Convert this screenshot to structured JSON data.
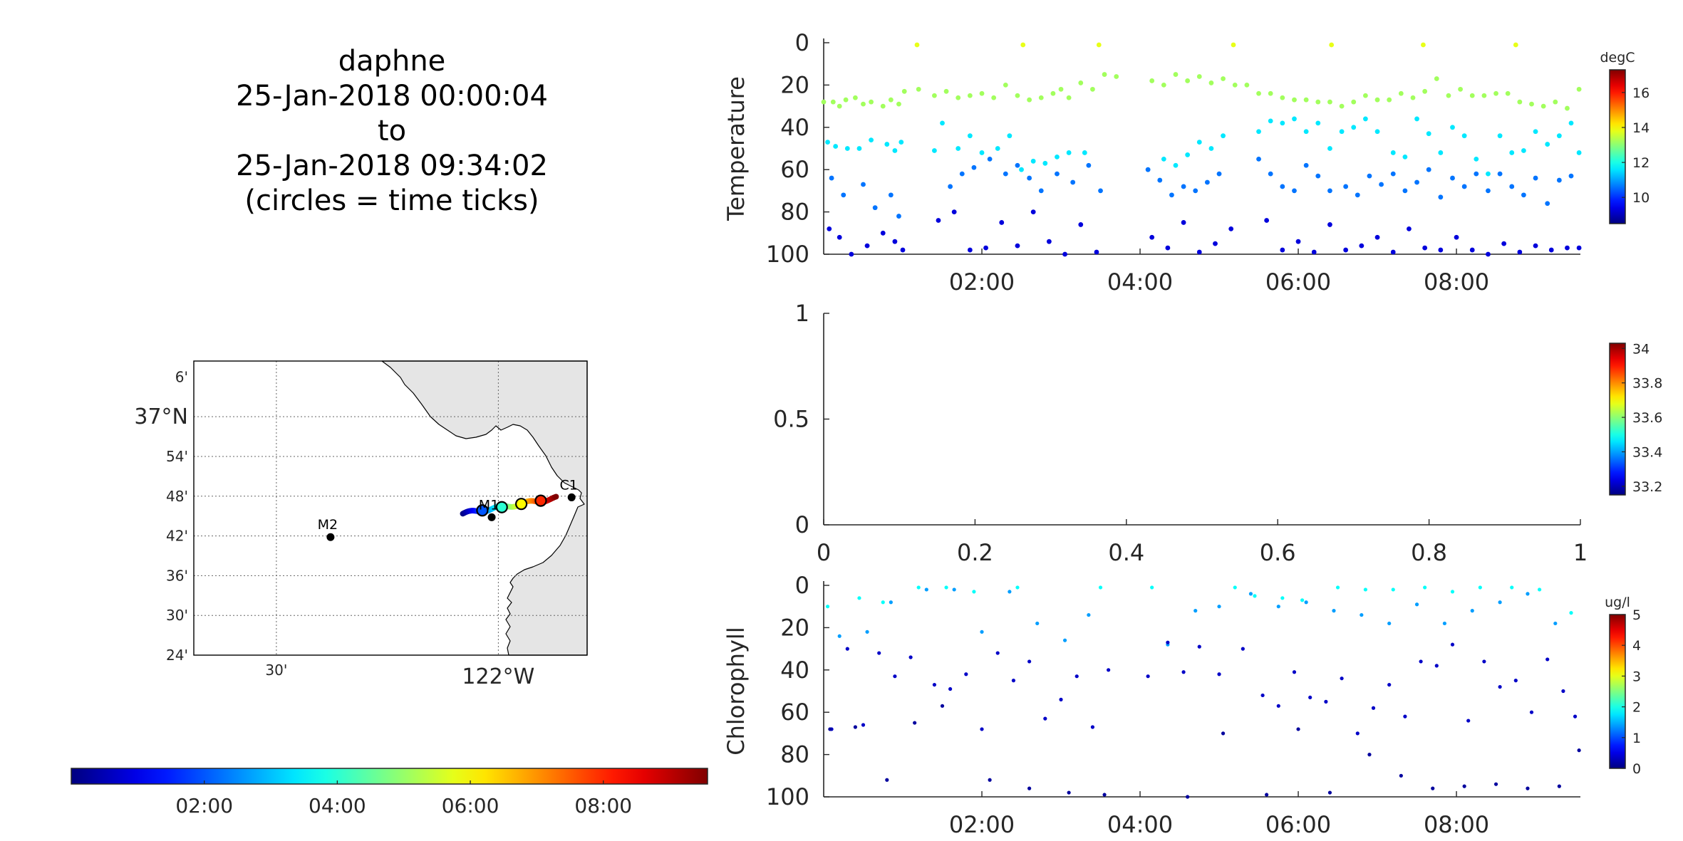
{
  "header": {
    "lines": [
      "daphne",
      "25-Jan-2018 00:00:04",
      "to",
      "25-Jan-2018 09:34:02",
      "(circles = time ticks)"
    ]
  },
  "chart_data": [
    {
      "type": "scatter",
      "panel": "temperature",
      "ylabel": "Temperature",
      "xlabel": "",
      "x_range_hours": [
        0.0,
        9.567
      ],
      "x_tick_values": [
        2,
        4,
        6,
        8
      ],
      "x_tick_labels": [
        "02:00",
        "04:00",
        "06:00",
        "08:00"
      ],
      "ylim": [
        0,
        100
      ],
      "y_reversed": true,
      "y_ticks": [
        0,
        20,
        40,
        60,
        80,
        100
      ],
      "colorbar": {
        "label": "degC",
        "min": 8.5,
        "max": 17.3,
        "ticks": [
          10,
          12,
          14,
          16
        ],
        "colormap": "jet"
      },
      "groups": [
        {
          "t": [
            0.0,
            0.12,
            0.2,
            0.28,
            0.4,
            0.5,
            0.6,
            0.75,
            0.85,
            0.95,
            1.02,
            1.2,
            1.4,
            1.55,
            1.7,
            1.85,
            2.0,
            2.15,
            2.3,
            2.45,
            2.6,
            2.75,
            2.9,
            3.0,
            3.1,
            3.25,
            3.4,
            3.55,
            3.7,
            4.15,
            4.3,
            4.45,
            4.6,
            4.75,
            4.9,
            5.05,
            5.2,
            5.35,
            5.5,
            5.65,
            5.8,
            5.95,
            6.1,
            6.25,
            6.4,
            6.55,
            6.7,
            6.85,
            7.0,
            7.15,
            7.3,
            7.45,
            7.6,
            7.75,
            7.9,
            8.05,
            8.2,
            8.35,
            8.5,
            8.65,
            8.8,
            8.95,
            9.1,
            9.25,
            9.4,
            9.55
          ],
          "depth": [
            28,
            28,
            30,
            27,
            26,
            29,
            28,
            30,
            27,
            29,
            23,
            22,
            25,
            23,
            26,
            25,
            24,
            26,
            20,
            25,
            27,
            26,
            24,
            22,
            26,
            19,
            22,
            15,
            16,
            18,
            20,
            15,
            18,
            16,
            19,
            17,
            20,
            20,
            24,
            24,
            26,
            27,
            27,
            28,
            28,
            30,
            28,
            25,
            27,
            27,
            24,
            26,
            23,
            17,
            25,
            22,
            25,
            25,
            24,
            24,
            28,
            29,
            30,
            28,
            31,
            22
          ],
          "temp": 13.2
        },
        {
          "t": [
            1.18,
            2.52,
            3.48,
            5.18,
            6.42,
            7.58,
            8.75
          ],
          "depth": [
            1,
            1,
            1,
            1,
            1,
            1,
            1
          ],
          "temp": 13.8
        },
        {
          "t": [
            0.05,
            0.15,
            0.3,
            0.45,
            0.6,
            0.8,
            0.9,
            0.98,
            1.4,
            1.5,
            1.7,
            1.85,
            2.0,
            2.2,
            2.35,
            2.5,
            2.65,
            2.8,
            2.95,
            3.1,
            3.3,
            4.3,
            4.45,
            4.6,
            4.75,
            4.9,
            5.05,
            5.5,
            5.65,
            5.8,
            5.95,
            6.1,
            6.25,
            6.4,
            6.55,
            6.7,
            6.85,
            7.0,
            7.2,
            7.35,
            7.5,
            7.65,
            7.8,
            7.95,
            8.1,
            8.25,
            8.4,
            8.55,
            8.7,
            8.85,
            9.0,
            9.15,
            9.3,
            9.45,
            9.55
          ],
          "depth": [
            47,
            49,
            50,
            50,
            46,
            48,
            51,
            47,
            51,
            38,
            50,
            44,
            52,
            50,
            44,
            60,
            56,
            57,
            54,
            52,
            52,
            55,
            58,
            53,
            47,
            50,
            44,
            42,
            37,
            38,
            36,
            42,
            38,
            50,
            42,
            40,
            36,
            42,
            52,
            54,
            36,
            43,
            52,
            40,
            44,
            55,
            62,
            44,
            52,
            51,
            42,
            48,
            44,
            38,
            52
          ],
          "temp": 11.6
        },
        {
          "t": [
            0.1,
            0.25,
            0.5,
            0.65,
            0.85,
            0.95,
            1.6,
            1.75,
            1.9,
            2.1,
            2.3,
            2.45,
            2.6,
            2.75,
            2.95,
            3.15,
            3.35,
            3.5,
            4.1,
            4.25,
            4.4,
            4.55,
            4.7,
            4.85,
            5.0,
            5.5,
            5.65,
            5.8,
            5.95,
            6.1,
            6.25,
            6.4,
            6.6,
            6.75,
            6.9,
            7.05,
            7.2,
            7.35,
            7.5,
            7.65,
            7.8,
            7.95,
            8.1,
            8.25,
            8.4,
            8.55,
            8.7,
            8.85,
            9.0,
            9.15,
            9.3,
            9.45
          ],
          "depth": [
            64,
            72,
            67,
            78,
            72,
            82,
            68,
            62,
            59,
            55,
            62,
            58,
            64,
            70,
            62,
            66,
            58,
            70,
            60,
            65,
            72,
            68,
            70,
            66,
            62,
            55,
            62,
            68,
            70,
            58,
            63,
            70,
            68,
            72,
            63,
            67,
            62,
            70,
            66,
            60,
            73,
            64,
            68,
            62,
            70,
            62,
            68,
            72,
            64,
            76,
            65,
            63
          ],
          "temp": 10.6
        },
        {
          "t": [
            0.07,
            0.2,
            0.35,
            0.55,
            0.75,
            0.9,
            1.0,
            1.45,
            1.65,
            1.85,
            2.05,
            2.25,
            2.45,
            2.65,
            2.85,
            3.05,
            3.25,
            3.45,
            4.15,
            4.35,
            4.55,
            4.75,
            4.95,
            5.15,
            5.6,
            5.8,
            6.0,
            6.2,
            6.4,
            6.6,
            6.8,
            7.0,
            7.2,
            7.4,
            7.6,
            7.8,
            8.0,
            8.2,
            8.4,
            8.6,
            8.8,
            9.0,
            9.2,
            9.4,
            9.55
          ],
          "depth": [
            88,
            92,
            100,
            96,
            90,
            94,
            98,
            84,
            80,
            98,
            97,
            85,
            96,
            80,
            94,
            100,
            86,
            99,
            92,
            97,
            85,
            99,
            95,
            88,
            84,
            98,
            94,
            99,
            86,
            98,
            96,
            92,
            99,
            88,
            97,
            98,
            92,
            98,
            100,
            95,
            99,
            96,
            98,
            97,
            97
          ],
          "temp": 9.3
        }
      ]
    },
    {
      "type": "scatter",
      "panel": "salinity",
      "xlabel": "",
      "ylabel": "",
      "xlim": [
        0,
        1
      ],
      "x_ticks": [
        0,
        0.2,
        0.4,
        0.6,
        0.8,
        1
      ],
      "ylim": [
        0,
        1
      ],
      "y_ticks": [
        0,
        0.5,
        1
      ],
      "colorbar": {
        "label": "",
        "min": 33.15,
        "max": 34.03,
        "ticks": [
          33.2,
          33.4,
          33.6,
          33.8,
          34
        ],
        "colormap": "jet"
      },
      "groups": []
    },
    {
      "type": "scatter",
      "panel": "chlorophyll",
      "ylabel": "Chlorophyll",
      "xlabel": "",
      "x_range_hours": [
        0.0,
        9.567
      ],
      "x_tick_values": [
        2,
        4,
        6,
        8
      ],
      "x_tick_labels": [
        "02:00",
        "04:00",
        "06:00",
        "08:00"
      ],
      "ylim": [
        0,
        100
      ],
      "y_reversed": true,
      "y_ticks": [
        0,
        20,
        40,
        60,
        80,
        100
      ],
      "colorbar": {
        "label": "ug/l",
        "min": 0,
        "max": 5,
        "ticks": [
          0,
          1,
          2,
          3,
          4,
          5
        ],
        "colormap": "jet"
      },
      "groups": [
        {
          "t": [
            0.05,
            0.45,
            0.75,
            1.2,
            1.55,
            1.9,
            2.45,
            3.5,
            4.15,
            5.2,
            5.45,
            5.8,
            6.05,
            6.5,
            6.85,
            7.2,
            7.6,
            7.95,
            8.3,
            8.7,
            9.05,
            9.45
          ],
          "depth": [
            10,
            6,
            8,
            1,
            1,
            3,
            1,
            1,
            1,
            1,
            5,
            6,
            7,
            1,
            2,
            2,
            1,
            3,
            1,
            1,
            2,
            13
          ],
          "temp": 1.9
        },
        {
          "t": [
            0.2,
            0.55,
            0.85,
            1.3,
            1.65,
            2.0,
            2.35,
            2.7,
            3.05,
            3.35,
            4.35,
            4.7,
            5.0,
            5.4,
            5.75,
            6.1,
            6.45,
            6.8,
            7.15,
            7.5,
            7.85,
            8.2,
            8.55,
            8.9,
            9.25
          ],
          "depth": [
            24,
            22,
            8,
            2,
            2,
            22,
            3,
            18,
            26,
            14,
            28,
            12,
            10,
            4,
            10,
            8,
            12,
            14,
            18,
            9,
            18,
            12,
            8,
            4,
            18
          ],
          "temp": 1.4
        },
        {
          "t": [
            0.1,
            0.3,
            0.5,
            0.7,
            0.9,
            1.1,
            1.4,
            1.6,
            1.8,
            2.0,
            2.2,
            2.4,
            2.6,
            2.8,
            3.0,
            3.2,
            3.4,
            3.6,
            4.1,
            4.35,
            4.55,
            4.75,
            5.0,
            5.3,
            5.55,
            5.75,
            5.95,
            6.15,
            6.35,
            6.55,
            6.75,
            6.95,
            7.15,
            7.35,
            7.55,
            7.75,
            7.95,
            8.15,
            8.35,
            8.55,
            8.75,
            8.95,
            9.15,
            9.35,
            9.5
          ],
          "depth": [
            68,
            30,
            66,
            32,
            43,
            34,
            47,
            49,
            42,
            68,
            32,
            45,
            36,
            63,
            54,
            43,
            67,
            40,
            43,
            27,
            41,
            29,
            42,
            30,
            52,
            57,
            41,
            53,
            55,
            44,
            70,
            58,
            47,
            62,
            36,
            38,
            28,
            64,
            36,
            48,
            45,
            60,
            35,
            50,
            62
          ],
          "temp": 0.35
        },
        {
          "t": [
            0.08,
            0.4,
            0.8,
            1.15,
            1.5,
            2.1,
            2.6,
            3.1,
            3.55,
            4.6,
            5.05,
            5.6,
            6.0,
            6.4,
            6.9,
            7.3,
            7.7,
            8.1,
            8.5,
            8.9,
            9.3,
            9.55
          ],
          "depth": [
            68,
            67,
            92,
            65,
            57,
            92,
            96,
            98,
            99,
            100,
            70,
            99,
            68,
            98,
            80,
            90,
            96,
            95,
            94,
            96,
            95,
            78
          ],
          "temp": 0.15
        }
      ]
    },
    {
      "type": "scatter",
      "panel": "map",
      "xlabel": "",
      "ylabel": "",
      "lat_ticks": [
        "6'",
        "37°N",
        "54'",
        "48'",
        "42'",
        "36'",
        "30'",
        "24'"
      ],
      "lon_ticks": [
        "30'",
        "122°W"
      ],
      "stations": [
        {
          "name": "M2",
          "lon": -122.378,
          "lat": 36.697
        },
        {
          "name": "M1",
          "lon": -122.015,
          "lat": 36.747
        },
        {
          "name": "C1",
          "lon": -121.835,
          "lat": 36.797
        }
      ],
      "track_hours": [
        0,
        9.567
      ],
      "track_lon_range": [
        -122.08,
        -121.87
      ],
      "track_lat_range": [
        36.756,
        36.795
      ],
      "time_tick_circles_hours": [
        2,
        4,
        6,
        8
      ]
    },
    {
      "type": "heatmap",
      "panel": "time-colorbar",
      "colormap": "jet",
      "x_range_hours": [
        0.0,
        9.567
      ],
      "tick_values": [
        2,
        4,
        6,
        8
      ],
      "tick_labels": [
        "02:00",
        "04:00",
        "06:00",
        "08:00"
      ]
    }
  ]
}
